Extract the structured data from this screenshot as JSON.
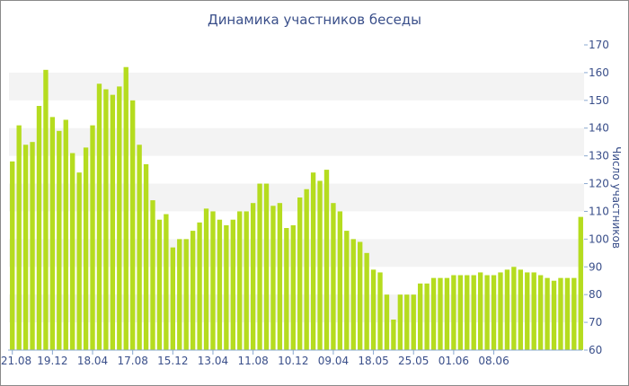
{
  "chart_data": {
    "type": "bar",
    "title": "Динамика участников беседы",
    "xlabel": "",
    "ylabel": "Число участников",
    "ylim": [
      60,
      170
    ],
    "yticks": [
      60,
      70,
      80,
      90,
      100,
      110,
      120,
      130,
      140,
      150,
      160,
      170
    ],
    "y_axis_side": "right",
    "grid": "alternating horizontal bands",
    "legend": "none",
    "bar_color": "#b5dc1f",
    "band_color": "#f3f3f3",
    "text_color": "#3a4f8a",
    "xtick_labels": [
      {
        "label": "21.08",
        "index": 0
      },
      {
        "label": "19.12",
        "index": 6
      },
      {
        "label": "18.04",
        "index": 12
      },
      {
        "label": "17.08",
        "index": 18
      },
      {
        "label": "15.12",
        "index": 24
      },
      {
        "label": "13.04",
        "index": 30
      },
      {
        "label": "11.08",
        "index": 36
      },
      {
        "label": "10.12",
        "index": 42
      },
      {
        "label": "09.04",
        "index": 48
      },
      {
        "label": "18.05",
        "index": 54
      },
      {
        "label": "25.05",
        "index": 60
      },
      {
        "label": "01.06",
        "index": 66
      },
      {
        "label": "08.06",
        "index": 72
      }
    ],
    "values": [
      128,
      141,
      134,
      135,
      148,
      161,
      144,
      139,
      143,
      131,
      124,
      133,
      141,
      156,
      154,
      152,
      155,
      162,
      150,
      134,
      127,
      114,
      107,
      109,
      97,
      100,
      100,
      103,
      106,
      111,
      110,
      107,
      105,
      107,
      110,
      110,
      113,
      120,
      120,
      112,
      113,
      104,
      105,
      115,
      118,
      124,
      121,
      125,
      113,
      110,
      103,
      100,
      99,
      95,
      89,
      88,
      80,
      71,
      80,
      80,
      80,
      84,
      84,
      86,
      86,
      86,
      87,
      87,
      87,
      87,
      88,
      87,
      87,
      88,
      89,
      90,
      89,
      88,
      88,
      87,
      86,
      85,
      86,
      86,
      86,
      108
    ]
  }
}
